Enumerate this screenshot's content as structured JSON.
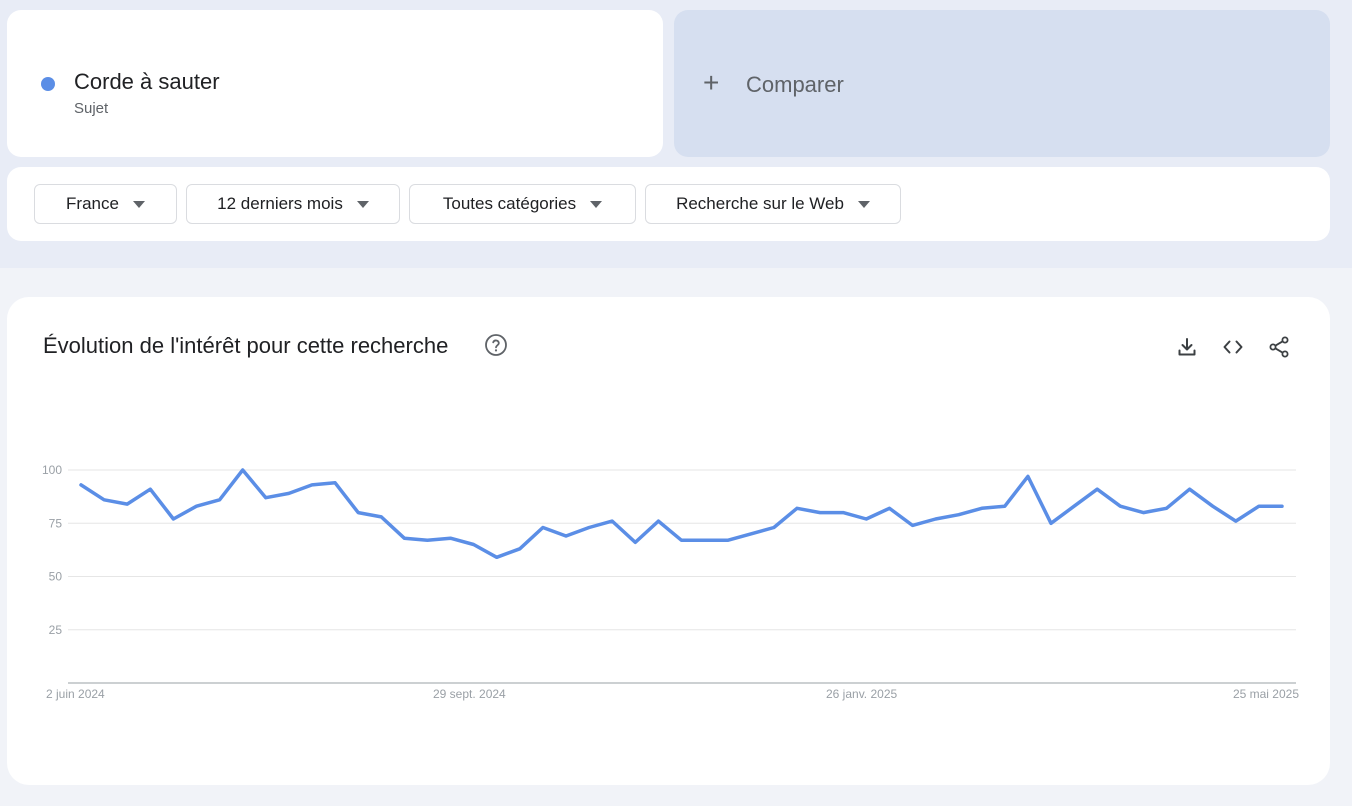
{
  "search_term": {
    "name": "Corde à sauter",
    "type": "Sujet",
    "color": "#5b8ee6"
  },
  "compare": {
    "plus": "+",
    "label": "Comparer"
  },
  "filters": {
    "region": "France",
    "period": "12 derniers mois",
    "category": "Toutes catégories",
    "search_type": "Recherche sur le Web"
  },
  "chart_section": {
    "title": "Évolution de l'intérêt pour cette recherche",
    "help_icon": "help-circle-icon",
    "tools": [
      "download-icon",
      "embed-code-icon",
      "share-icon"
    ]
  },
  "chart_data": {
    "type": "line",
    "title": "",
    "xlabel": "",
    "ylabel": "",
    "ylim": [
      0,
      100
    ],
    "y_ticks": [
      "25",
      "50",
      "75",
      "100"
    ],
    "x_tick_labels": [
      "2 juin 2024",
      "29 sept. 2024",
      "26 janv. 2025",
      "25 mai 2025"
    ],
    "grid": true,
    "series": [
      {
        "color": "#5b8ee6",
        "values": [
          93,
          86,
          84,
          91,
          77,
          83,
          86,
          100,
          87,
          89,
          93,
          94,
          80,
          78,
          68,
          67,
          68,
          65,
          59,
          63,
          73,
          69,
          73,
          76,
          66,
          76,
          67,
          67,
          67,
          70,
          73,
          82,
          80,
          80,
          77,
          82,
          74,
          77,
          79,
          82,
          83,
          97,
          75,
          83,
          91,
          83,
          80,
          82,
          91,
          83,
          76,
          83,
          83
        ]
      }
    ]
  }
}
